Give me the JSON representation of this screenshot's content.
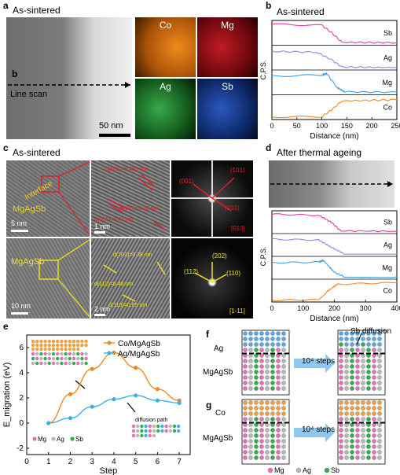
{
  "panels": {
    "a": {
      "label": "a",
      "title": "As-sintered",
      "line_marker": "b",
      "line_label": "Line scan",
      "scale": "50 nm",
      "maps": [
        {
          "el": "Co",
          "color": "#e8821e"
        },
        {
          "el": "Mg",
          "color": "#c41c24"
        },
        {
          "el": "Ag",
          "color": "#36b04a"
        },
        {
          "el": "Sb",
          "color": "#2a5cc8"
        }
      ]
    },
    "b": {
      "label": "b",
      "title": "As-sintered"
    },
    "c": {
      "label": "c",
      "title": "As-sintered",
      "top": {
        "interface": "Interface",
        "phase": "MgAgSb",
        "scale1": "5 nm",
        "scale2": "1 nm",
        "d1": "d(101)=0.255 nm",
        "d2": "d(101)=0.26 nm",
        "d3": "d(001)=0.41 nm",
        "fft1": "(101)",
        "fft2": "(001)",
        "fft3": "(101)",
        "zone": "[010]"
      },
      "bottom": {
        "phase": "MgAgSb",
        "scale1": "10 nm",
        "scale2": "2 nm",
        "d1": "d(202)=0.38 nm",
        "d2": "d(112)=0.48 nm",
        "d3": "d(110)=0.65 nm",
        "fft1": "(202)",
        "fft2": "(112)",
        "fft3": "(110)",
        "zone": "[1-11]"
      }
    },
    "d": {
      "label": "d",
      "title": "After thermal ageing"
    },
    "e": {
      "label": "e",
      "legend_mg": "Mg",
      "legend_ag": "Ag",
      "legend_sb": "Sb",
      "diffusion_label": "diffusion path"
    },
    "f": {
      "label": "f",
      "top_label": "Ag",
      "bottom_label": "MgAgSb",
      "steps": "10⁴ steps",
      "sb_label": "Sb diffusion"
    },
    "g": {
      "label": "g",
      "top_label": "Co",
      "bottom_label": "MgAgSb",
      "steps": "10⁴ steps",
      "legend": [
        {
          "el": "Mg",
          "color": "#e76fb3"
        },
        {
          "el": "Ag",
          "color": "#b8b8b8"
        },
        {
          "el": "Sb",
          "color": "#2db04a"
        }
      ]
    }
  },
  "chart_data": [
    {
      "type": "line",
      "panel": "b",
      "xlabel": "Distance (nm)",
      "ylabel": "C.P.S.",
      "xlim": [
        0,
        250
      ],
      "xticks": [
        0,
        50,
        100,
        150,
        200,
        250
      ],
      "series": [
        {
          "name": "Sb",
          "color": "#e53ba0",
          "x": [
            0,
            100,
            120,
            140,
            250
          ],
          "y": [
            0.85,
            0.8,
            0.5,
            0.12,
            0.1
          ]
        },
        {
          "name": "Ag",
          "color": "#8a8ae8",
          "x": [
            0,
            90,
            120,
            140,
            250
          ],
          "y": [
            0.75,
            0.72,
            0.4,
            0.12,
            0.1
          ]
        },
        {
          "name": "Mg",
          "color": "#3aa0ee",
          "x": [
            0,
            100,
            110,
            130,
            145,
            250
          ],
          "y": [
            0.75,
            0.8,
            0.85,
            0.3,
            0.12,
            0.1
          ]
        },
        {
          "name": "Co",
          "color": "#f08a20",
          "x": [
            0,
            100,
            120,
            140,
            250
          ],
          "y": [
            0.1,
            0.12,
            0.4,
            0.75,
            0.8
          ]
        }
      ]
    },
    {
      "type": "line",
      "panel": "d",
      "xlabel": "Distance (nm)",
      "ylabel": "C.P.S.",
      "xlim": [
        0,
        400
      ],
      "xticks": [
        0,
        100,
        200,
        300,
        400
      ],
      "series": [
        {
          "name": "Sb",
          "color": "#e53ba0",
          "x": [
            0,
            150,
            190,
            220,
            400
          ],
          "y": [
            0.85,
            0.8,
            0.5,
            0.12,
            0.1
          ]
        },
        {
          "name": "Ag",
          "color": "#8a8ae8",
          "x": [
            0,
            150,
            190,
            230,
            400
          ],
          "y": [
            0.75,
            0.72,
            0.4,
            0.12,
            0.1
          ]
        },
        {
          "name": "Mg",
          "color": "#3aa0ee",
          "x": [
            0,
            150,
            165,
            200,
            230,
            400
          ],
          "y": [
            0.72,
            0.75,
            0.82,
            0.3,
            0.12,
            0.1
          ]
        },
        {
          "name": "Co",
          "color": "#f08a20",
          "x": [
            0,
            150,
            175,
            210,
            400
          ],
          "y": [
            0.08,
            0.1,
            0.45,
            0.78,
            0.85
          ]
        }
      ]
    },
    {
      "type": "line",
      "panel": "e",
      "xlabel": "Step",
      "ylabel": "E_migration (eV)",
      "xlim": [
        0,
        7.5
      ],
      "ylim": [
        -2.5,
        7
      ],
      "xticks": [
        0,
        1,
        2,
        3,
        4,
        5,
        6,
        7
      ],
      "yticks": [
        -2,
        0,
        2,
        4,
        6
      ],
      "series": [
        {
          "name": "Co/MgAgSb",
          "color": "#f08a20",
          "x": [
            1,
            2,
            3,
            4,
            5,
            6,
            7
          ],
          "y": [
            0.0,
            2.3,
            4.3,
            5.6,
            4.4,
            2.7,
            1.8
          ]
        },
        {
          "name": "Ag/MgAgSb",
          "color": "#39b2ea",
          "x": [
            1,
            2,
            3,
            4,
            5,
            6,
            7
          ],
          "y": [
            0.0,
            0.4,
            1.3,
            1.9,
            2.2,
            1.8,
            1.6
          ]
        }
      ]
    }
  ]
}
